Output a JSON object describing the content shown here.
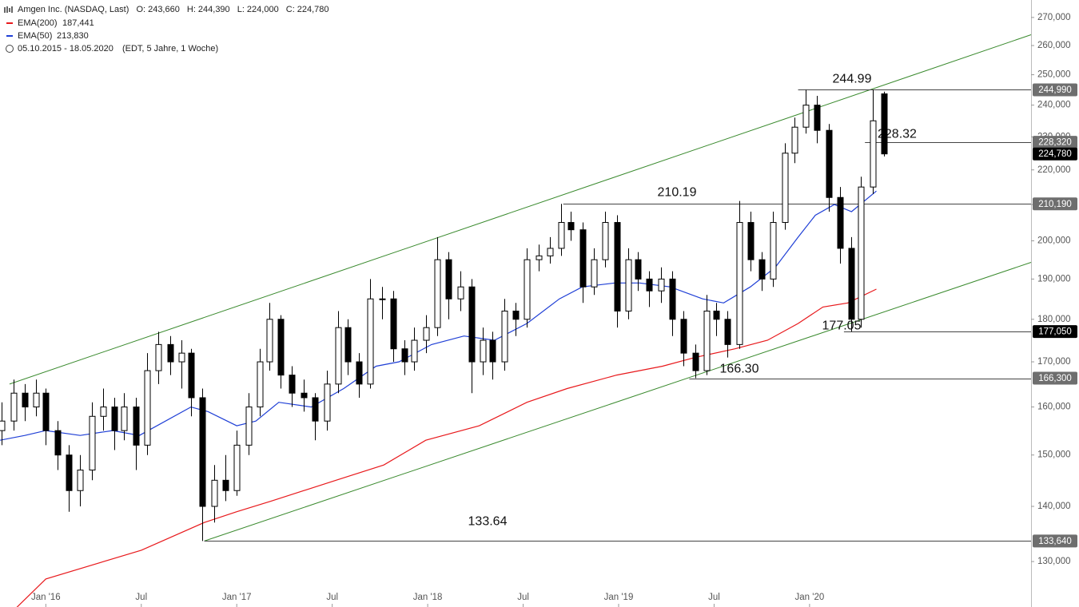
{
  "chart_data": {
    "type": "candlestick",
    "title": "Amgen Inc. (NASDAQ, Last)",
    "quote": [
      {
        "key": "O:",
        "value": "243,660"
      },
      {
        "key": "H:",
        "value": "244,390"
      },
      {
        "key": "L:",
        "value": "224,000"
      },
      {
        "key": "C:",
        "value": "224,780"
      }
    ],
    "period": "05.10.2015 - 18.05.2020",
    "period_note": "(EDT, 5 Jahre, 1 Woche)",
    "log_scale": true,
    "xlim": [
      2015.76,
      2021.16
    ],
    "ylim": [
      122.3,
      276.4
    ],
    "xticks": [
      {
        "value": 2016,
        "label": "Jan '16"
      },
      {
        "value": 2016.5,
        "label": "Jul"
      },
      {
        "value": 2017,
        "label": "Jan '17"
      },
      {
        "value": 2017.5,
        "label": "Jul"
      },
      {
        "value": 2018,
        "label": "Jan '18"
      },
      {
        "value": 2018.5,
        "label": "Jul"
      },
      {
        "value": 2019,
        "label": "Jan '19"
      },
      {
        "value": 2019.5,
        "label": "Jul"
      },
      {
        "value": 2020,
        "label": "Jan '20"
      }
    ],
    "yticks": [
      {
        "value": 130,
        "label": "130,000"
      },
      {
        "value": 140,
        "label": "140,000"
      },
      {
        "value": 150,
        "label": "150,000"
      },
      {
        "value": 160,
        "label": "160,000"
      },
      {
        "value": 170,
        "label": "170,000"
      },
      {
        "value": 180,
        "label": "180,000"
      },
      {
        "value": 190,
        "label": "190,000"
      },
      {
        "value": 200,
        "label": "200,000"
      },
      {
        "value": 210,
        "label": "210,000"
      },
      {
        "value": 220,
        "label": "220,000"
      },
      {
        "value": 230,
        "label": "230,000"
      },
      {
        "value": 240,
        "label": "240,000"
      },
      {
        "value": 250,
        "label": "250,000"
      },
      {
        "value": 260,
        "label": "260,000"
      },
      {
        "value": 270,
        "label": "270,000"
      }
    ],
    "candle_color": "#000000",
    "x": [
      2015.77,
      2015.83,
      2015.89,
      2015.95,
      2016.0,
      2016.06,
      2016.12,
      2016.18,
      2016.24,
      2016.3,
      2016.36,
      2016.41,
      2016.47,
      2016.53,
      2016.59,
      2016.65,
      2016.71,
      2016.76,
      2016.82,
      2016.88,
      2016.94,
      2017.0,
      2017.06,
      2017.12,
      2017.17,
      2017.23,
      2017.29,
      2017.35,
      2017.41,
      2017.47,
      2017.53,
      2017.58,
      2017.64,
      2017.7,
      2017.76,
      2017.82,
      2017.88,
      2017.93,
      2017.99,
      2018.05,
      2018.11,
      2018.17,
      2018.23,
      2018.29,
      2018.34,
      2018.4,
      2018.46,
      2018.52,
      2018.58,
      2018.64,
      2018.7,
      2018.75,
      2018.81,
      2018.87,
      2018.93,
      2018.99,
      2019.05,
      2019.1,
      2019.16,
      2019.22,
      2019.28,
      2019.34,
      2019.4,
      2019.46,
      2019.51,
      2019.57,
      2019.63,
      2019.69,
      2019.75,
      2019.81,
      2019.87,
      2019.92,
      2019.98,
      2020.04,
      2020.1,
      2020.16,
      2020.22,
      2020.27,
      2020.33,
      2020.39
    ],
    "ohlc": [
      [
        155,
        161,
        152,
        157
      ],
      [
        157,
        166,
        155,
        163
      ],
      [
        163,
        165,
        157,
        160
      ],
      [
        160,
        166,
        158,
        163
      ],
      [
        163,
        164,
        152,
        155
      ],
      [
        155,
        157,
        147,
        150
      ],
      [
        150,
        152,
        139,
        143
      ],
      [
        143,
        150,
        140,
        147
      ],
      [
        147,
        161,
        145,
        158
      ],
      [
        158,
        164,
        155,
        160
      ],
      [
        160,
        162,
        151,
        155
      ],
      [
        155,
        163,
        153,
        160
      ],
      [
        160,
        162,
        147,
        152
      ],
      [
        152,
        172,
        150,
        168
      ],
      [
        168,
        177,
        165,
        174
      ],
      [
        174,
        176,
        167,
        170
      ],
      [
        170,
        175,
        164,
        172
      ],
      [
        172,
        173,
        158,
        162
      ],
      [
        162,
        164,
        133.64,
        140
      ],
      [
        140,
        148,
        137,
        145
      ],
      [
        145,
        150,
        141,
        143
      ],
      [
        143,
        155,
        142,
        152
      ],
      [
        152,
        163,
        150,
        160
      ],
      [
        160,
        173,
        158,
        170
      ],
      [
        170,
        184,
        168,
        180
      ],
      [
        180,
        181,
        164,
        167
      ],
      [
        167,
        169,
        160,
        163
      ],
      [
        163,
        166,
        159,
        162
      ],
      [
        162,
        163,
        153,
        157
      ],
      [
        157,
        168,
        155,
        165
      ],
      [
        165,
        182,
        163,
        178
      ],
      [
        178,
        180,
        167,
        170
      ],
      [
        170,
        172,
        162,
        165
      ],
      [
        165,
        190,
        164,
        185
      ],
      [
        185,
        188,
        180,
        185
      ],
      [
        185,
        187,
        170,
        173
      ],
      [
        173,
        175,
        167,
        170
      ],
      [
        170,
        178,
        168,
        175
      ],
      [
        175,
        181,
        172,
        178
      ],
      [
        178,
        201,
        176,
        195
      ],
      [
        195,
        197,
        180,
        185
      ],
      [
        185,
        192,
        182,
        188
      ],
      [
        188,
        190,
        163,
        170
      ],
      [
        170,
        178,
        167,
        175
      ],
      [
        175,
        177,
        166,
        170
      ],
      [
        170,
        185,
        168,
        182
      ],
      [
        182,
        184,
        176,
        180
      ],
      [
        180,
        198,
        178,
        195
      ],
      [
        195,
        199,
        192,
        196
      ],
      [
        196,
        201,
        194,
        198
      ],
      [
        198,
        210.19,
        196,
        205
      ],
      [
        205,
        208,
        200,
        203
      ],
      [
        203,
        205,
        184,
        188
      ],
      [
        188,
        198,
        186,
        195
      ],
      [
        195,
        208,
        193,
        205
      ],
      [
        205,
        207,
        178,
        182
      ],
      [
        182,
        198,
        180,
        195
      ],
      [
        195,
        197,
        187,
        190
      ],
      [
        190,
        192,
        183,
        187
      ],
      [
        187,
        193,
        184,
        190
      ],
      [
        190,
        192,
        176,
        180
      ],
      [
        180,
        182,
        169,
        172
      ],
      [
        172,
        174,
        166.3,
        168
      ],
      [
        168,
        186,
        167,
        182
      ],
      [
        182,
        184,
        176,
        180
      ],
      [
        180,
        182,
        171,
        174
      ],
      [
        174,
        211,
        173,
        205
      ],
      [
        205,
        208,
        192,
        195
      ],
      [
        195,
        197,
        187,
        190
      ],
      [
        190,
        208,
        188,
        205
      ],
      [
        205,
        228,
        203,
        225
      ],
      [
        225,
        236,
        222,
        233
      ],
      [
        233,
        244.99,
        231,
        240
      ],
      [
        240,
        243,
        228,
        232
      ],
      [
        232,
        234,
        208,
        212
      ],
      [
        212,
        215,
        194,
        198
      ],
      [
        198,
        201,
        177.05,
        180
      ],
      [
        180,
        218,
        178,
        215
      ],
      [
        215,
        244.99,
        213,
        235
      ],
      [
        243.66,
        244.39,
        224,
        224.78
      ]
    ],
    "series": [
      {
        "name": "EMA(200)",
        "value_label": "187,441",
        "color": "#e8191c",
        "x": [
          2015.84,
          2016.0,
          2016.5,
          2016.83,
          2017.0,
          2017.18,
          2017.52,
          2017.77,
          2017.99,
          2018.27,
          2018.52,
          2018.73,
          2018.99,
          2019.23,
          2019.4,
          2019.61,
          2019.78,
          2019.94,
          2020.07,
          2020.2,
          2020.35
        ],
        "values": [
          122,
          127,
          132,
          137,
          139,
          141,
          145,
          148,
          153,
          156,
          161,
          164,
          167,
          169,
          171,
          173,
          175,
          179,
          183,
          184,
          187.441
        ]
      },
      {
        "name": "EMA(50)",
        "value_label": "213,830",
        "color": "#1f3fd6",
        "x": [
          2015.76,
          2015.89,
          2016.0,
          2016.18,
          2016.35,
          2016.49,
          2016.76,
          2016.85,
          2017.0,
          2017.1,
          2017.22,
          2017.39,
          2017.56,
          2017.73,
          2017.85,
          2018.02,
          2018.19,
          2018.35,
          2018.52,
          2018.69,
          2018.81,
          2018.98,
          2019.11,
          2019.27,
          2019.44,
          2019.55,
          2019.69,
          2019.82,
          2019.94,
          2020.03,
          2020.13,
          2020.22,
          2020.35
        ],
        "values": [
          153,
          154,
          155,
          154,
          155,
          154,
          160,
          159,
          156,
          157,
          161,
          160,
          164,
          169,
          170,
          174,
          176,
          175,
          179,
          185,
          188,
          189,
          189,
          188,
          185,
          184,
          188,
          193,
          201,
          207,
          210,
          208,
          213.83
        ]
      }
    ],
    "trendlines": [
      {
        "color": "#3a8a2e",
        "x": [
          2015.81,
          2021.16
        ],
        "values": [
          165,
          263.8
        ]
      },
      {
        "color": "#3a8a2e",
        "x": [
          2016.83,
          2021.16
        ],
        "values": [
          133.64,
          194.3
        ]
      }
    ],
    "levels": [
      {
        "value": 244.99,
        "label": "244.99",
        "axis_label": "244,990",
        "start": 2019.94
      },
      {
        "value": 228.32,
        "label": "228.32",
        "axis_label": "228,320",
        "start": 2020.29
      },
      {
        "value": 210.19,
        "label": "210.19",
        "axis_label": "210,190",
        "start": 2018.71
      },
      {
        "value": 177.05,
        "label": "177.05",
        "axis_label": "177,050",
        "start": 2020.18
      },
      {
        "value": 166.3,
        "label": "166.30",
        "axis_label": "166,300",
        "start": 2019.37
      },
      {
        "value": 133.64,
        "label": "133.64",
        "axis_label": "133,640",
        "start": 2016.83
      }
    ],
    "last_price": {
      "value": 224.78,
      "label": "224,780"
    }
  }
}
